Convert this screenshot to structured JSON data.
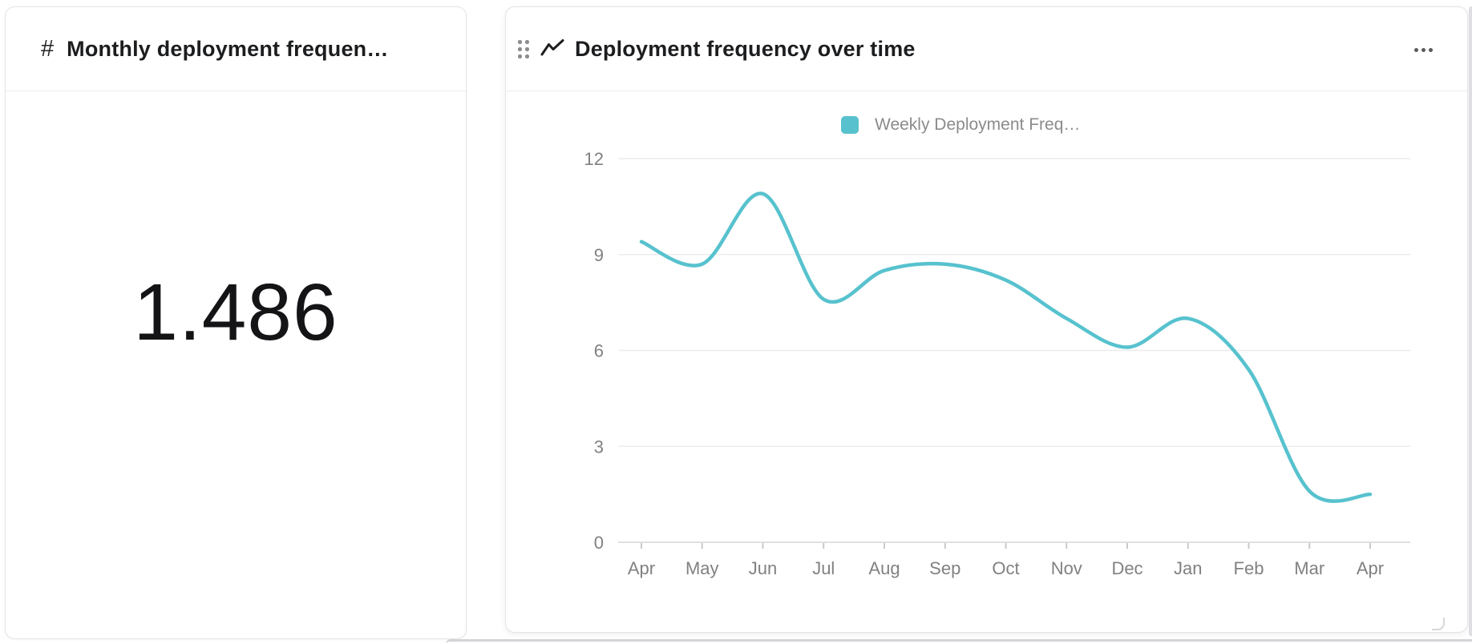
{
  "colors": {
    "accent": "#57c2ce",
    "grid": "#ececec",
    "axis": "#e0e0e0",
    "tick": "#c9c9cc",
    "axis_label": "#818181",
    "title_text": "#1c1d1f"
  },
  "stat_card": {
    "icon_glyph": "#",
    "title": "Monthly deployment frequen…",
    "value": "1.486"
  },
  "chart_card": {
    "title": "Deployment frequency over time",
    "menu_icon": "horizontal-ellipsis",
    "drag_icon": "six-dot-grid",
    "title_icon": "trend-line",
    "legend": {
      "label": "Weekly Deployment Freq…",
      "swatch_color": "#57c2ce"
    }
  },
  "chart_data": [
    {
      "type": "number",
      "title": "Monthly deployment frequen…",
      "value": "1.486"
    },
    {
      "type": "line",
      "title": "Deployment frequency over time",
      "categories": [
        "Apr",
        "May",
        "Jun",
        "Jul",
        "Aug",
        "Sep",
        "Oct",
        "Nov",
        "Dec",
        "Jan",
        "Feb",
        "Mar",
        "Apr"
      ],
      "series": [
        {
          "name": "Weekly Deployment Freq…",
          "color": "#57c2ce",
          "values": [
            9.4,
            8.7,
            10.9,
            7.6,
            8.5,
            8.7,
            8.2,
            7.0,
            6.1,
            7.0,
            5.4,
            1.6,
            1.5
          ]
        }
      ],
      "ylim": [
        0,
        12
      ],
      "yticks": [
        0,
        3,
        6,
        9,
        12
      ],
      "grid": true,
      "legend_position": "top",
      "smooth": true
    }
  ]
}
